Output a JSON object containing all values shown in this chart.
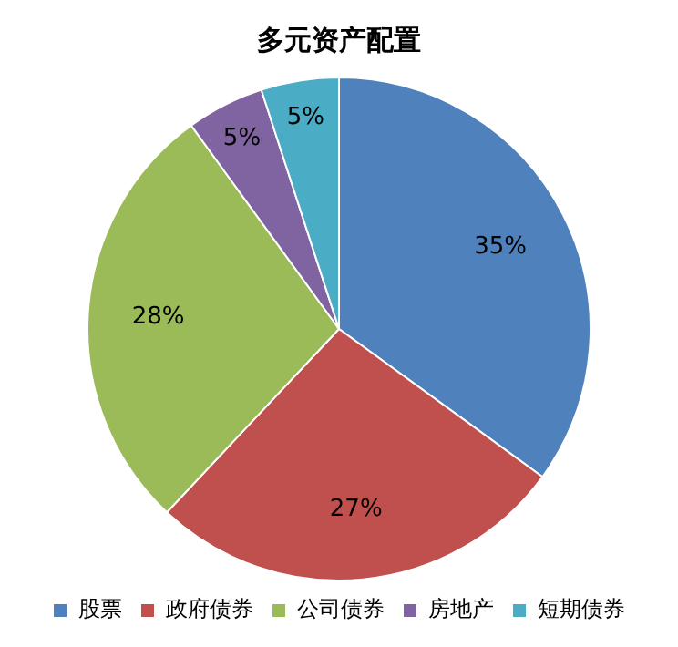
{
  "chart_data": {
    "type": "pie",
    "title": "多元资产配置",
    "categories": [
      "股票",
      "政府债券",
      "公司债券",
      "房地产",
      "短期债券"
    ],
    "values": [
      35,
      27,
      28,
      5,
      5
    ],
    "value_labels": [
      "35%",
      "27%",
      "28%",
      "5%",
      "5%"
    ],
    "colors": [
      "#4f81bd",
      "#c0504d",
      "#9bbb59",
      "#8064a2",
      "#4bacc6"
    ],
    "legend": "bottom"
  }
}
